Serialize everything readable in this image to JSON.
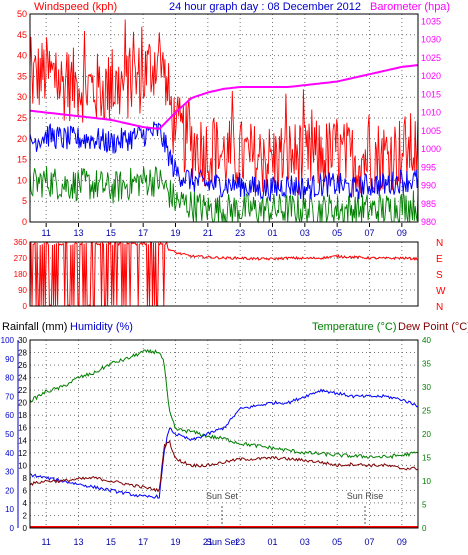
{
  "chart_data": [
    {
      "type": "line",
      "title": "24 hour graph day : 08 December 2012",
      "left_axis_label": "Windspeed (kph)",
      "right_axis_label": "Barometer (hpa)",
      "y_left_ticks": [
        "0",
        "5",
        "10",
        "15",
        "20",
        "25",
        "30",
        "35",
        "40",
        "45",
        "50"
      ],
      "y_right_ticks": [
        "980",
        "985",
        "990",
        "995",
        "1000",
        "1005",
        "1010",
        "1015",
        "1020",
        "1025",
        "1030",
        "1035"
      ],
      "x_ticks": [
        "11",
        "13",
        "15",
        "17",
        "19",
        "21",
        "23",
        "01",
        "03",
        "05",
        "07",
        "09"
      ],
      "ylim": [
        0,
        50
      ],
      "y2lim": [
        980,
        1037
      ],
      "grid": true,
      "colors": {
        "gust": "#ff0000",
        "average": "#0000ff",
        "speed": "#008000",
        "barometer": "#ff00ff"
      },
      "series": [
        {
          "key": "gust",
          "x": [
            0,
            1,
            2,
            3,
            4,
            5,
            6,
            7,
            8,
            9,
            10,
            11,
            12,
            13,
            14,
            15,
            16,
            17,
            18,
            19,
            20,
            21,
            22,
            23,
            24
          ],
          "y": [
            34,
            36,
            33,
            33,
            32,
            32,
            33,
            35,
            40,
            22,
            19,
            17,
            16,
            16,
            15,
            15,
            16,
            15,
            16,
            16,
            15,
            16,
            16,
            17,
            18
          ]
        },
        {
          "key": "average",
          "x": [
            0,
            1,
            2,
            3,
            4,
            5,
            6,
            7,
            8,
            9,
            10,
            11,
            12,
            13,
            14,
            15,
            16,
            17,
            18,
            19,
            20,
            21,
            22,
            23,
            24
          ],
          "y": [
            19,
            21,
            20,
            20,
            20,
            19,
            20,
            21,
            22,
            12,
            10,
            9,
            9,
            9,
            8,
            8,
            9,
            8,
            9,
            9,
            8,
            9,
            9,
            10,
            10
          ]
        },
        {
          "key": "speed",
          "x": [
            0,
            1,
            2,
            3,
            4,
            5,
            6,
            7,
            8,
            9,
            10,
            11,
            12,
            13,
            14,
            15,
            16,
            17,
            18,
            19,
            20,
            21,
            22,
            23,
            24
          ],
          "y": [
            9,
            10,
            9,
            9,
            9,
            8,
            9,
            10,
            10,
            5,
            4,
            3,
            3,
            3,
            3,
            3,
            3,
            3,
            3,
            3,
            3,
            3,
            3,
            4,
            4
          ]
        },
        {
          "key": "barometer",
          "x": [
            0,
            1,
            2,
            3,
            4,
            5,
            6,
            7,
            8,
            9,
            10,
            11,
            12,
            13,
            14,
            15,
            16,
            17,
            18,
            19,
            20,
            21,
            22,
            23,
            24
          ],
          "y": [
            1010.5,
            1010,
            1009.5,
            1009,
            1008.5,
            1008,
            1007,
            1006,
            1005.5,
            1010,
            1014,
            1015.5,
            1016.5,
            1017,
            1017,
            1017,
            1017,
            1017.5,
            1018,
            1018.5,
            1019.5,
            1020.5,
            1021.5,
            1022.5,
            1023
          ]
        }
      ]
    },
    {
      "type": "scatter",
      "title": "",
      "y_left_ticks": [
        "0",
        "90",
        "180",
        "270",
        "360"
      ],
      "y_right_labels": [
        "N",
        "W",
        "S",
        "E",
        "N"
      ],
      "x_ticks": [
        "11",
        "13",
        "15",
        "17",
        "19",
        "21",
        "23",
        "01",
        "03",
        "05",
        "07",
        "09"
      ],
      "ylim": [
        0,
        360
      ],
      "grid": true,
      "colors": {
        "direction": "#ff0000"
      },
      "series": [
        {
          "key": "direction",
          "x": [
            0,
            1,
            2,
            3,
            4,
            5,
            6,
            7,
            8,
            9,
            10,
            11,
            12,
            13,
            14,
            15,
            16,
            17,
            18,
            19,
            20,
            21,
            22,
            23,
            24
          ],
          "y": [
            360,
            350,
            10,
            355,
            340,
            15,
            350,
            355,
            350,
            300,
            280,
            275,
            270,
            270,
            265,
            265,
            270,
            268,
            270,
            280,
            275,
            270,
            268,
            270,
            265
          ]
        }
      ]
    },
    {
      "type": "line",
      "title": "",
      "rain_axis_label": "Rainfall (mm)",
      "humidity_axis_label": "Humidity (%)",
      "temperature_axis_label": "Temperature (°C)",
      "dewpoint_axis_label": "Dew Point (°C)",
      "y_rain_ticks": [
        "0",
        "10",
        "20",
        "30",
        "40",
        "50",
        "60",
        "70",
        "80",
        "90",
        "100"
      ],
      "y_humidity_ticks": [
        "0",
        "2",
        "4",
        "6",
        "8",
        "10",
        "12",
        "14",
        "16",
        "18",
        "20",
        "22",
        "24",
        "26",
        "28",
        "30"
      ],
      "y_temp_ticks": [
        "0",
        "5",
        "10",
        "15",
        "20",
        "25",
        "30",
        "35",
        "40"
      ],
      "x_ticks": [
        "11",
        "13",
        "15",
        "17",
        "19",
        "Sun Set",
        "21",
        "23",
        "01",
        "03",
        "05",
        "07",
        "09"
      ],
      "annotations": [
        "Sun Set",
        "Sun Rise"
      ],
      "humidity_lim": [
        0,
        30
      ],
      "temp_lim": [
        0,
        40
      ],
      "grid": true,
      "colors": {
        "temperature": "#008000",
        "humidity": "#0000ff",
        "dewpoint": "#800000",
        "rain": "#ff0000"
      },
      "series": [
        {
          "key": "temperature",
          "x": [
            0,
            1,
            2,
            3,
            4,
            5,
            6,
            7,
            8,
            8.3,
            8.6,
            9,
            10,
            11,
            12,
            13,
            14,
            15,
            16,
            17,
            18,
            19,
            20,
            21,
            22,
            23,
            24
          ],
          "y": [
            27,
            29,
            30,
            32,
            33,
            35,
            36,
            37.5,
            37.5,
            35,
            25,
            21,
            20.5,
            19.5,
            19,
            18,
            17.5,
            17,
            16.5,
            16,
            15.8,
            15.5,
            15.3,
            15.2,
            15.1,
            15.5,
            16
          ]
        },
        {
          "key": "humidity",
          "x": [
            0,
            1,
            2,
            3,
            4,
            5,
            6,
            7,
            8,
            8.3,
            8.6,
            9,
            10,
            11,
            12,
            13,
            14,
            15,
            16,
            17,
            18,
            19,
            20,
            21,
            22,
            23,
            24
          ],
          "y": [
            8.5,
            8,
            7.5,
            7,
            6.5,
            6,
            5.5,
            5,
            5,
            12,
            16,
            15,
            14,
            15,
            16,
            19,
            19.5,
            20,
            20,
            21,
            22,
            21.5,
            21,
            21,
            21,
            20.5,
            19.5
          ]
        },
        {
          "key": "dewpoint",
          "x": [
            0,
            1,
            2,
            3,
            4,
            5,
            6,
            7,
            8,
            8.3,
            8.6,
            9,
            10,
            11,
            12,
            13,
            14,
            15,
            16,
            17,
            18,
            19,
            20,
            21,
            22,
            23,
            24
          ],
          "y": [
            7,
            7.5,
            7.5,
            7.8,
            8,
            7.5,
            7,
            6.5,
            6,
            13,
            14,
            11,
            10,
            10,
            10.5,
            11,
            11,
            11.2,
            11,
            10.8,
            10.5,
            10,
            10.2,
            10,
            10,
            9.5,
            9.5
          ]
        },
        {
          "key": "rain",
          "x": [
            0,
            24
          ],
          "y": [
            0,
            0
          ]
        }
      ]
    }
  ]
}
